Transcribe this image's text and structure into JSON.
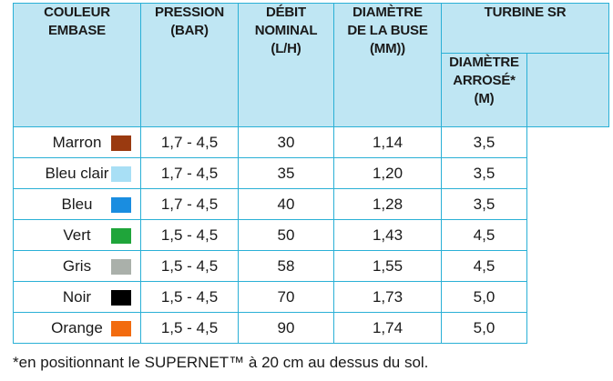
{
  "headers": {
    "couleur": [
      "COULEUR",
      "EMBASE"
    ],
    "pression": [
      "PRESSION",
      "(BAR)"
    ],
    "debit": [
      "DÉBIT",
      "NOMINAL",
      "(L/H)"
    ],
    "diametre_buse": [
      "DIAMÈTRE",
      "DE LA BUSE",
      "(MM))"
    ],
    "turbine": "TURBINE SR",
    "diametre_arrose": [
      "DIAMÈTRE",
      "ARROSÉ*",
      "(M)"
    ]
  },
  "rows": [
    {
      "couleur": "Marron",
      "swatch": "#9a3a10",
      "pression": "1,7 - 4,5",
      "debit": "30",
      "buse": "1,14",
      "arrose": "3,5"
    },
    {
      "couleur": "Bleu clair",
      "swatch": "#a8dff5",
      "pression": "1,7 - 4,5",
      "debit": "35",
      "buse": "1,20",
      "arrose": "3,5"
    },
    {
      "couleur": "Bleu",
      "swatch": "#1a8de0",
      "pression": "1,7 - 4,5",
      "debit": "40",
      "buse": "1,28",
      "arrose": "3,5"
    },
    {
      "couleur": "Vert",
      "swatch": "#1fa53a",
      "pression": "1,5 - 4,5",
      "debit": "50",
      "buse": "1,43",
      "arrose": "4,5"
    },
    {
      "couleur": "Gris",
      "swatch": "#aab0aa",
      "pression": "1,5 - 4,5",
      "debit": "58",
      "buse": "1,55",
      "arrose": "4,5"
    },
    {
      "couleur": "Noir",
      "swatch": "#000000",
      "pression": "1,5 - 4,5",
      "debit": "70",
      "buse": "1,73",
      "arrose": "5,0"
    },
    {
      "couleur": "Orange",
      "swatch": "#f26b0f",
      "pression": "1,5 - 4,5",
      "debit": "90",
      "buse": "1,74",
      "arrose": "5,0"
    }
  ],
  "footnote": "*en positionnant le SUPERNET™ à 20 cm au dessus du sol."
}
